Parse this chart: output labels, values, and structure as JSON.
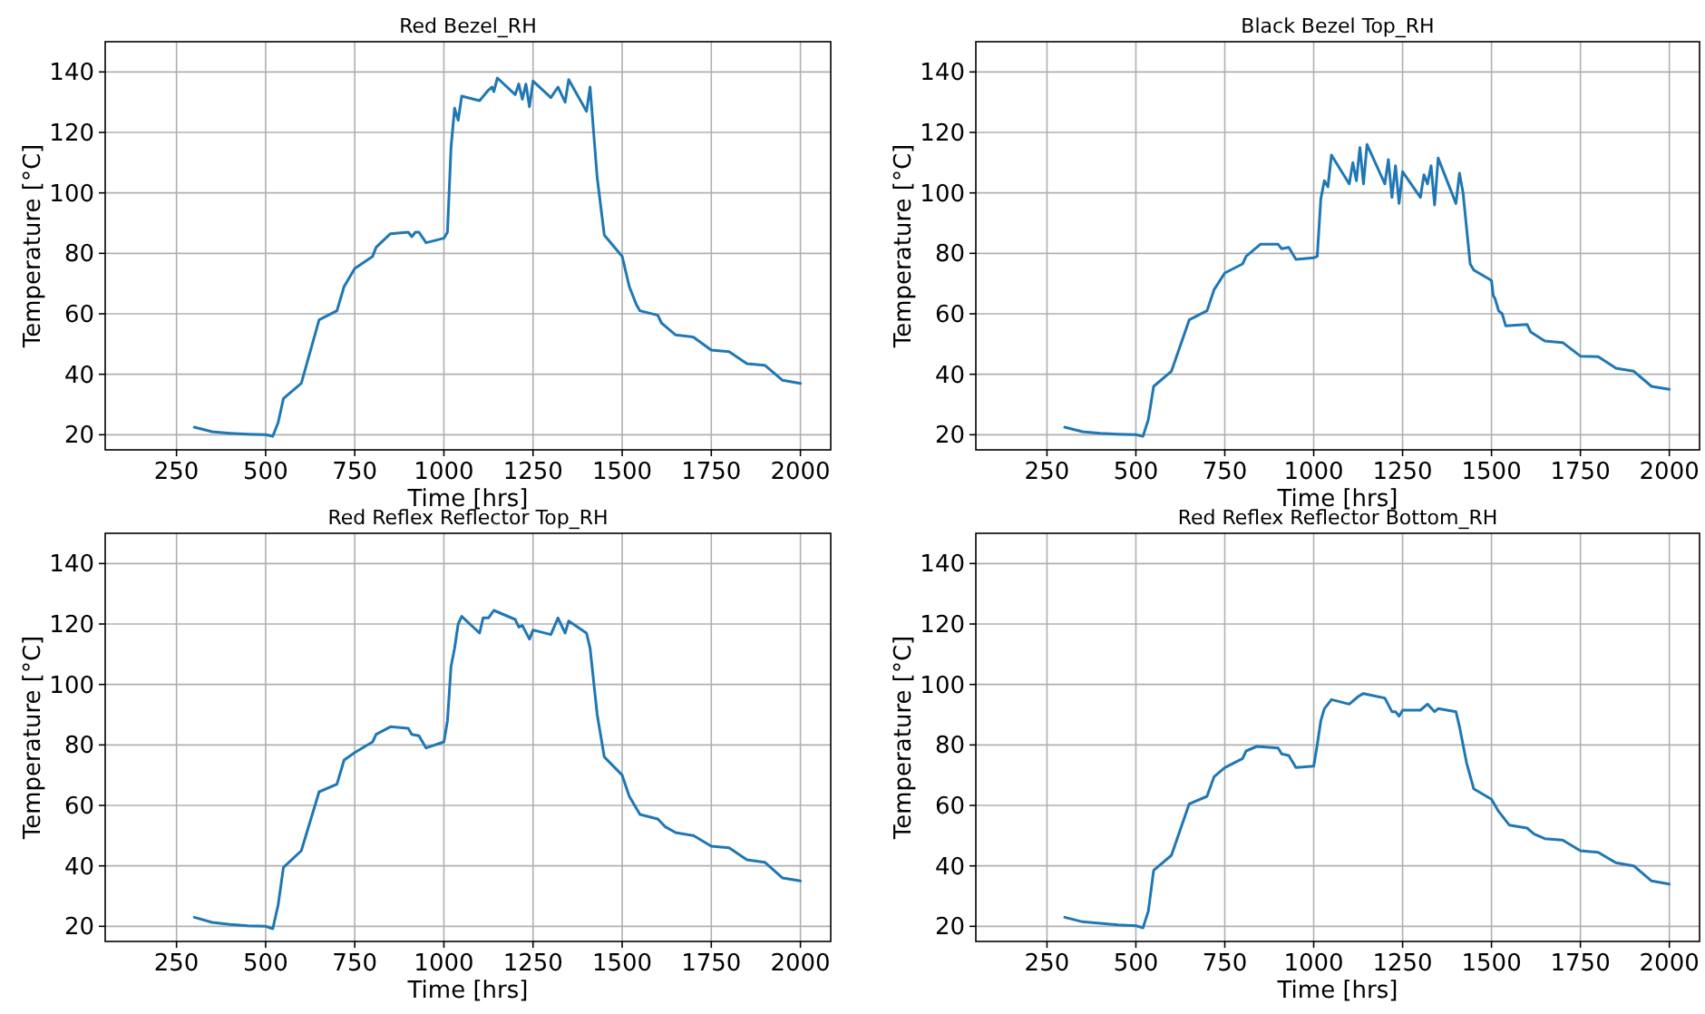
{
  "chart_data": [
    {
      "type": "line",
      "title": "Red Bezel_RH",
      "xlabel": "Time [hrs]",
      "ylabel": "Temperature [°C]",
      "color": "#1f77b4",
      "xlim": [
        50,
        2085
      ],
      "ylim": [
        15,
        150
      ],
      "xticks": [
        250,
        500,
        750,
        1000,
        1250,
        1500,
        1750,
        2000
      ],
      "yticks": [
        20,
        40,
        60,
        80,
        100,
        120,
        140
      ],
      "grid": true,
      "x": [
        300,
        350,
        400,
        450,
        500,
        520,
        535,
        550,
        600,
        650,
        700,
        720,
        750,
        800,
        810,
        850,
        900,
        910,
        920,
        930,
        950,
        1000,
        1010,
        1020,
        1030,
        1040,
        1050,
        1100,
        1125,
        1135,
        1140,
        1150,
        1200,
        1210,
        1220,
        1230,
        1240,
        1250,
        1300,
        1320,
        1340,
        1350,
        1400,
        1410,
        1430,
        1450,
        1500,
        1520,
        1540,
        1550,
        1600,
        1610,
        1620,
        1650,
        1700,
        1750,
        1800,
        1850,
        1900,
        1950,
        2000
      ],
      "values": [
        22.5,
        21,
        20.5,
        20.2,
        20,
        19.5,
        24,
        32,
        37,
        58,
        61,
        69,
        75,
        79,
        82,
        86.5,
        87,
        85.5,
        87,
        87,
        83.5,
        85,
        87,
        115,
        128,
        124,
        132,
        130.5,
        134,
        135,
        133.5,
        138,
        132.5,
        136,
        131,
        136,
        128.5,
        137,
        131.5,
        135,
        130,
        137.5,
        127,
        135,
        105,
        86,
        79,
        69,
        63,
        61,
        59.5,
        57,
        56,
        53,
        52.3,
        48,
        47.5,
        43.5,
        43,
        38,
        37
      ]
    },
    {
      "type": "line",
      "title": "Black Bezel Top_RH",
      "xlabel": "Time [hrs]",
      "ylabel": "Temperature [°C]",
      "color": "#1f77b4",
      "xlim": [
        50,
        2085
      ],
      "ylim": [
        15,
        150
      ],
      "xticks": [
        250,
        500,
        750,
        1000,
        1250,
        1500,
        1750,
        2000
      ],
      "yticks": [
        20,
        40,
        60,
        80,
        100,
        120,
        140
      ],
      "grid": true,
      "x": [
        300,
        350,
        400,
        450,
        500,
        520,
        535,
        550,
        600,
        650,
        700,
        720,
        750,
        800,
        810,
        850,
        900,
        910,
        930,
        950,
        1000,
        1010,
        1020,
        1030,
        1040,
        1050,
        1100,
        1110,
        1120,
        1130,
        1140,
        1150,
        1200,
        1210,
        1220,
        1230,
        1240,
        1250,
        1300,
        1310,
        1320,
        1330,
        1340,
        1350,
        1400,
        1410,
        1420,
        1440,
        1450,
        1500,
        1505,
        1510,
        1520,
        1530,
        1540,
        1600,
        1610,
        1650,
        1700,
        1750,
        1800,
        1850,
        1900,
        1950,
        2000
      ],
      "values": [
        22.5,
        21,
        20.5,
        20.2,
        20,
        19.5,
        25,
        36,
        41,
        58,
        61,
        68,
        73.5,
        76.5,
        79,
        83,
        83,
        81.5,
        82,
        78,
        78.5,
        79,
        98,
        104,
        102,
        112.5,
        103,
        110,
        104,
        115,
        103,
        116,
        103,
        111,
        98.5,
        109,
        96.5,
        107,
        98.5,
        106,
        103,
        109,
        96,
        111.5,
        96.5,
        106.5,
        100,
        76.5,
        74.5,
        71,
        66,
        65,
        61,
        60,
        56,
        56.5,
        54,
        51,
        50.5,
        46,
        45.8,
        42,
        41,
        36,
        35
      ]
    },
    {
      "type": "line",
      "title": "Red Reflex Reflector Top_RH",
      "xlabel": "Time [hrs]",
      "ylabel": "Temperature [°C]",
      "color": "#1f77b4",
      "xlim": [
        50,
        2085
      ],
      "ylim": [
        15,
        150
      ],
      "xticks": [
        250,
        500,
        750,
        1000,
        1250,
        1500,
        1750,
        2000
      ],
      "yticks": [
        20,
        40,
        60,
        80,
        100,
        120,
        140
      ],
      "grid": true,
      "x": [
        300,
        350,
        400,
        450,
        500,
        520,
        535,
        550,
        600,
        650,
        700,
        720,
        750,
        800,
        810,
        850,
        900,
        910,
        930,
        950,
        1000,
        1010,
        1020,
        1030,
        1040,
        1050,
        1100,
        1110,
        1125,
        1140,
        1200,
        1210,
        1220,
        1240,
        1250,
        1300,
        1320,
        1340,
        1350,
        1400,
        1410,
        1430,
        1450,
        1500,
        1520,
        1550,
        1600,
        1620,
        1650,
        1700,
        1750,
        1800,
        1850,
        1900,
        1950,
        2000
      ],
      "values": [
        23,
        21.3,
        20.6,
        20.2,
        20,
        19.2,
        27,
        39.5,
        45,
        64.5,
        67,
        75,
        77.5,
        81,
        83.5,
        86,
        85.5,
        83.5,
        83,
        79,
        81,
        88,
        106,
        112,
        120,
        122.5,
        117,
        122,
        122,
        124.5,
        121.5,
        119,
        119.5,
        115,
        118,
        116.5,
        122,
        117,
        121,
        117,
        112,
        90,
        76,
        70,
        63,
        57,
        55.5,
        53,
        51,
        50,
        46.5,
        46,
        42,
        41.2,
        36,
        35
      ]
    },
    {
      "type": "line",
      "title": "Red Reflex Reflector Bottom_RH",
      "xlabel": "Time [hrs]",
      "ylabel": "Temperature [°C]",
      "color": "#1f77b4",
      "xlim": [
        50,
        2085
      ],
      "ylim": [
        15,
        150
      ],
      "xticks": [
        250,
        500,
        750,
        1000,
        1250,
        1500,
        1750,
        2000
      ],
      "yticks": [
        20,
        40,
        60,
        80,
        100,
        120,
        140
      ],
      "grid": true,
      "x": [
        300,
        350,
        400,
        450,
        500,
        520,
        535,
        550,
        600,
        650,
        700,
        720,
        750,
        800,
        810,
        840,
        900,
        910,
        930,
        950,
        1000,
        1010,
        1020,
        1030,
        1050,
        1100,
        1125,
        1140,
        1200,
        1220,
        1230,
        1240,
        1250,
        1300,
        1320,
        1340,
        1350,
        1400,
        1410,
        1430,
        1450,
        1500,
        1520,
        1550,
        1600,
        1620,
        1650,
        1700,
        1750,
        1800,
        1850,
        1900,
        1950,
        2000
      ],
      "values": [
        23,
        21.5,
        21,
        20.5,
        20.2,
        19.5,
        25,
        38.5,
        43.5,
        60.5,
        63,
        69.5,
        72.5,
        75.5,
        78,
        79.5,
        79,
        77,
        76.5,
        72.5,
        73,
        80,
        88,
        92,
        95,
        93.5,
        96,
        97,
        95.5,
        91,
        91,
        89.5,
        91.5,
        91.5,
        93.5,
        91,
        92,
        91,
        86,
        74,
        65.5,
        62,
        58,
        53.5,
        52.5,
        50.5,
        49,
        48.5,
        45,
        44.5,
        41,
        40,
        35,
        34
      ]
    }
  ]
}
